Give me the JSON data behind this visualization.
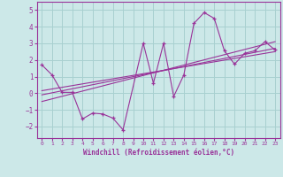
{
  "xlabel": "Windchill (Refroidissement éolien,°C)",
  "background_color": "#cce8e8",
  "grid_color": "#a8d0d0",
  "line_color": "#993399",
  "xlim": [
    -0.5,
    23.5
  ],
  "ylim": [
    -2.7,
    5.5
  ],
  "xticks": [
    0,
    1,
    2,
    3,
    4,
    5,
    6,
    7,
    8,
    9,
    10,
    11,
    12,
    13,
    14,
    15,
    16,
    17,
    18,
    19,
    20,
    21,
    22,
    23
  ],
  "yticks": [
    -2,
    -1,
    0,
    1,
    2,
    3,
    4,
    5
  ],
  "scatter_x": [
    0,
    1,
    2,
    3,
    4,
    5,
    6,
    7,
    8,
    10,
    11,
    12,
    13,
    14,
    15,
    16,
    17,
    18,
    19,
    20,
    21,
    22,
    23
  ],
  "scatter_y": [
    1.7,
    1.1,
    0.05,
    0.05,
    -1.55,
    -1.2,
    -1.25,
    -1.5,
    -2.2,
    3.0,
    0.6,
    3.0,
    -0.2,
    1.1,
    4.2,
    4.85,
    4.5,
    2.55,
    1.75,
    2.4,
    2.55,
    3.1,
    2.6
  ],
  "reg_lines": [
    {
      "x": [
        0,
        23
      ],
      "y": [
        -0.1,
        2.7
      ]
    },
    {
      "x": [
        0,
        23
      ],
      "y": [
        0.15,
        2.5
      ]
    },
    {
      "x": [
        0,
        23
      ],
      "y": [
        -0.5,
        3.1
      ]
    }
  ]
}
